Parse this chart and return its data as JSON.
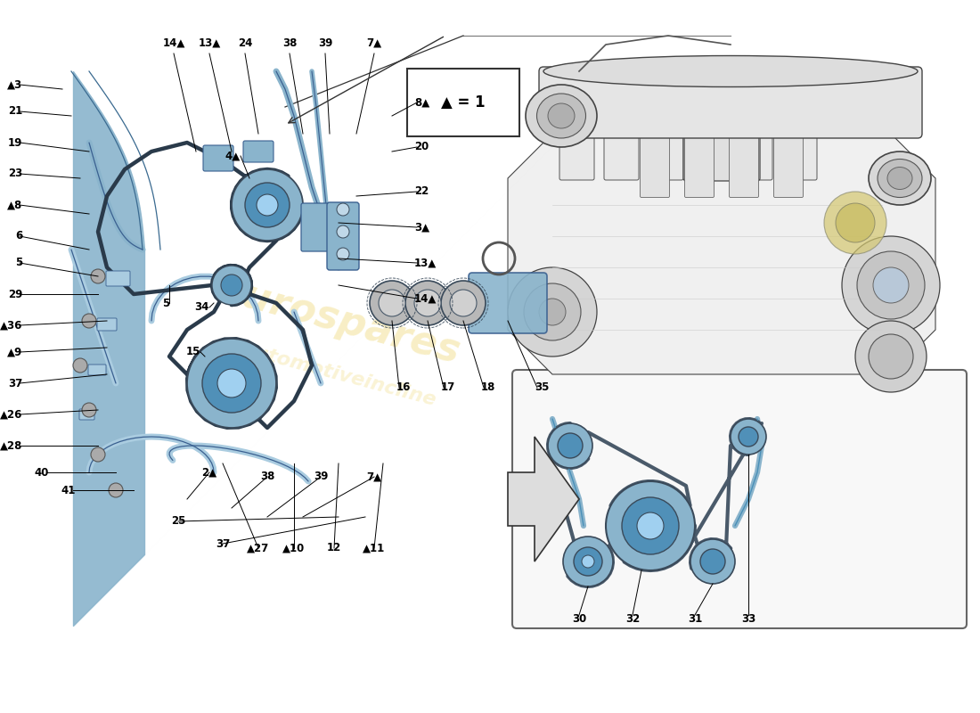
{
  "bg_color": "#ffffff",
  "chain_color": "#5a6070",
  "blue_fill": "#8ab4cc",
  "blue_light": "#aacce0",
  "blue_dark": "#5090b8",
  "gray_fill": "#c8c8c8",
  "label_fs": 8.5,
  "watermark_color": "#e8c840",
  "line_color": "#000000",
  "left_labels": [
    [
      "▲3",
      2.5,
      70.5
    ],
    [
      "21",
      2.5,
      67.5
    ],
    [
      "19",
      2.5,
      64.0
    ],
    [
      "23",
      2.5,
      60.5
    ],
    [
      "▲8",
      2.5,
      57.0
    ],
    [
      "6",
      2.5,
      53.5
    ],
    [
      "5",
      2.5,
      50.5
    ],
    [
      "29",
      2.5,
      47.0
    ],
    [
      "▲36",
      2.5,
      43.5
    ],
    [
      "▲9",
      2.5,
      40.5
    ],
    [
      "37",
      2.5,
      37.0
    ],
    [
      "▲26",
      2.5,
      33.5
    ],
    [
      "▲28",
      2.5,
      30.0
    ],
    [
      "40",
      5.5,
      27.0
    ],
    [
      "41",
      8.5,
      25.0
    ]
  ],
  "top_labels": [
    [
      "14▲",
      19.5,
      74.5
    ],
    [
      "13▲",
      23.5,
      74.5
    ],
    [
      "24",
      27.5,
      74.5
    ],
    [
      "38",
      32.5,
      74.5
    ],
    [
      "39",
      36.5,
      74.5
    ],
    [
      "7▲",
      42.0,
      74.5
    ]
  ],
  "right_labels": [
    [
      "8▲",
      46.5,
      68.5
    ],
    [
      "20",
      46.5,
      63.5
    ],
    [
      "22",
      46.5,
      58.5
    ],
    [
      "3▲",
      46.5,
      54.5
    ],
    [
      "13▲",
      46.5,
      50.5
    ],
    [
      "14▲",
      46.5,
      46.5
    ],
    [
      "16",
      44.5,
      36.5
    ],
    [
      "17",
      49.5,
      36.5
    ],
    [
      "18",
      54.0,
      36.5
    ],
    [
      "35",
      60.0,
      36.5
    ]
  ],
  "mid_labels": [
    [
      "4▲",
      27.0,
      62.5
    ],
    [
      "34",
      23.5,
      45.5
    ],
    [
      "15",
      22.5,
      40.5
    ],
    [
      "5",
      19.0,
      46.0
    ]
  ],
  "bottom_labels": [
    [
      "2▲",
      23.5,
      27.0
    ],
    [
      "38",
      30.0,
      26.5
    ],
    [
      "39",
      36.0,
      26.5
    ],
    [
      "7▲",
      42.0,
      26.5
    ],
    [
      "25",
      20.0,
      21.5
    ],
    [
      "37",
      25.0,
      19.0
    ],
    [
      "▲27",
      29.0,
      18.5
    ],
    [
      "▲10",
      33.0,
      18.5
    ],
    [
      "12",
      37.5,
      18.5
    ],
    [
      "▲11",
      42.0,
      18.5
    ]
  ],
  "inset_labels": [
    [
      "30",
      65.0,
      10.5
    ],
    [
      "32",
      71.0,
      10.5
    ],
    [
      "31",
      78.0,
      10.5
    ],
    [
      "33",
      84.0,
      10.5
    ]
  ]
}
